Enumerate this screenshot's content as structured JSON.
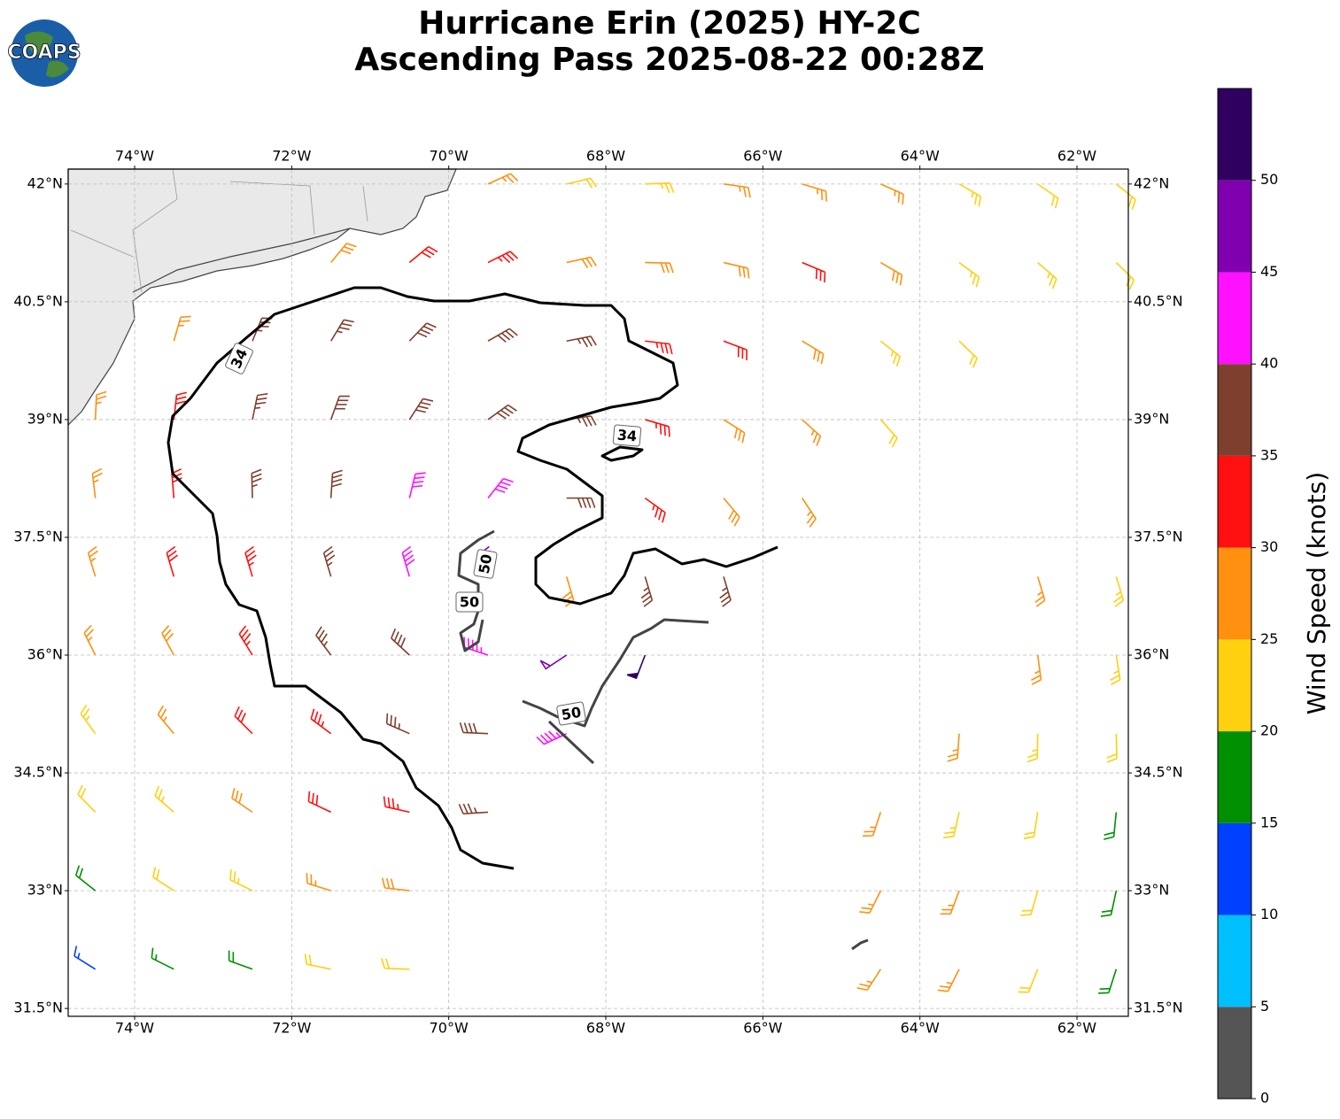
{
  "logo": "COAPS",
  "chart_data": {
    "type": "barbs",
    "title": "Hurricane Erin (2025) HY-2C",
    "subtitle": "Ascending Pass 2025-08-22 00:28Z",
    "xlim": [
      -74.846,
      -61.346
    ],
    "ylim": [
      31.4,
      42.19
    ],
    "xticks": [
      {
        "value": -74,
        "label": "74°W"
      },
      {
        "value": -72,
        "label": "72°W"
      },
      {
        "value": -70,
        "label": "70°W"
      },
      {
        "value": -68,
        "label": "68°W"
      },
      {
        "value": -66,
        "label": "66°W"
      },
      {
        "value": -64,
        "label": "64°W"
      },
      {
        "value": -62,
        "label": "62°W"
      }
    ],
    "yticks": [
      {
        "value": 31.5,
        "label": "31.5°N"
      },
      {
        "value": 33,
        "label": "33°N"
      },
      {
        "value": 34.5,
        "label": "34.5°N"
      },
      {
        "value": 36,
        "label": "36°N"
      },
      {
        "value": 37.5,
        "label": "37.5°N"
      },
      {
        "value": 39,
        "label": "39°N"
      },
      {
        "value": 40.5,
        "label": "40.5°N"
      },
      {
        "value": 42,
        "label": "42°N"
      }
    ],
    "grid": true,
    "contour_labels": [
      34,
      34,
      50,
      50,
      50
    ],
    "wind": {
      "lons": [
        -74.5,
        -73.5,
        -72.5,
        -71.5,
        -70.5,
        -69.5,
        -68.5,
        -67.5,
        -66.5,
        -65.5,
        -64.5,
        -63.5,
        -62.5,
        -61.5
      ],
      "lats": [
        42,
        41,
        40,
        39,
        38,
        37,
        36,
        35,
        34,
        33,
        32
      ],
      "speeds": [
        [
          null,
          null,
          null,
          null,
          null,
          27,
          22,
          23,
          27,
          26,
          27,
          24,
          22,
          22
        ],
        [
          null,
          null,
          null,
          28,
          32,
          33,
          29,
          28,
          29,
          31,
          28,
          24,
          23,
          22
        ],
        [
          null,
          27,
          36,
          37,
          38,
          38,
          37,
          33,
          32,
          28,
          24,
          22,
          null,
          null
        ],
        [
          27,
          32,
          36,
          38,
          38,
          38,
          36,
          33,
          29,
          25,
          22,
          null,
          null,
          null
        ],
        [
          27,
          32,
          36,
          38,
          41,
          42,
          39,
          33,
          28,
          27,
          null,
          null,
          null,
          null
        ],
        [
          26,
          31,
          34,
          37,
          42,
          47,
          28,
          37,
          37,
          null,
          null,
          null,
          27,
          23
        ],
        [
          27,
          28,
          33,
          37,
          39,
          43,
          48,
          52,
          null,
          null,
          null,
          null,
          27,
          23
        ],
        [
          23,
          27,
          31,
          34,
          37,
          39,
          44,
          null,
          null,
          null,
          null,
          27,
          24,
          22
        ],
        [
          22,
          24,
          28,
          30,
          33,
          36,
          null,
          null,
          null,
          null,
          27,
          24,
          22,
          19
        ],
        [
          19,
          22,
          24,
          27,
          28,
          null,
          null,
          null,
          null,
          null,
          27,
          26,
          22,
          19
        ],
        [
          14,
          17,
          18,
          21,
          22,
          null,
          null,
          null,
          null,
          null,
          27,
          26,
          22,
          18
        ]
      ]
    },
    "colorbar": {
      "label": "Wind Speed (knots)",
      "ylim": [
        0,
        55
      ],
      "bounds": [
        0,
        5,
        10,
        15,
        20,
        25,
        30,
        35,
        40,
        45,
        50,
        55
      ],
      "colors": [
        "#555555",
        "#00bfff",
        "#0040ff",
        "#009000",
        "#ffd010",
        "#ff9010",
        "#ff1010",
        "#7f3f2f",
        "#ff10ff",
        "#8000b0",
        "#300060"
      ],
      "ticks": [
        0,
        5,
        10,
        15,
        20,
        25,
        30,
        35,
        40,
        45,
        50
      ]
    }
  }
}
